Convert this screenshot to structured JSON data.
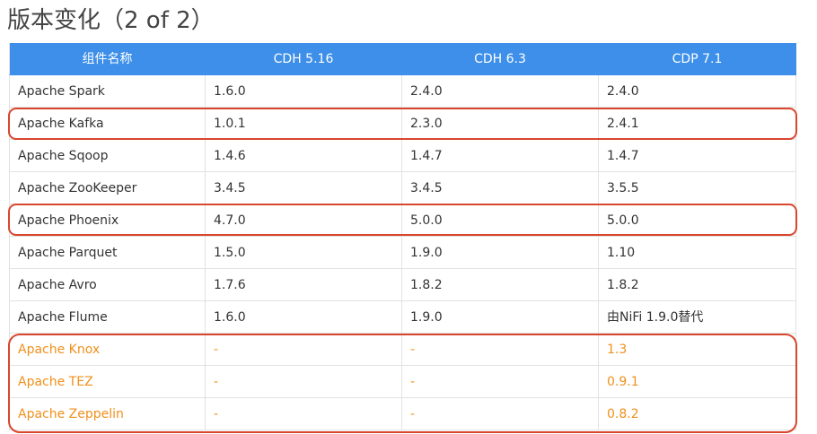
{
  "header": {
    "title": "版本变化（2 of 2）"
  },
  "table": {
    "headers": [
      "组件名称",
      "CDH 5.16",
      "CDH 6.3",
      "CDP 7.1"
    ],
    "rows": [
      [
        "Apache Spark",
        "1.6.0",
        "2.4.0",
        "2.4.0"
      ],
      [
        "Apache Kafka",
        "1.0.1",
        "2.3.0",
        "2.4.1"
      ],
      [
        "Apache Sqoop",
        "1.4.6",
        "1.4.7",
        "1.4.7"
      ],
      [
        "Apache ZooKeeper",
        "3.4.5",
        "3.4.5",
        "3.5.5"
      ],
      [
        "Apache Phoenix",
        "4.7.0",
        "5.0.0",
        "5.0.0"
      ],
      [
        "Apache Parquet",
        "1.5.0",
        "1.9.0",
        "1.10"
      ],
      [
        "Apache Avro",
        "1.7.6",
        "1.8.2",
        "1.8.2"
      ],
      [
        "Apache Flume",
        "1.6.0",
        "1.9.0",
        "由NiFi 1.9.0替代"
      ],
      [
        "Apache Knox",
        "-",
        "-",
        "1.3"
      ],
      [
        "Apache TEZ",
        "-",
        "-",
        "0.9.1"
      ],
      [
        "Apache Zeppelin",
        "-",
        "-",
        "0.8.2"
      ]
    ]
  }
}
